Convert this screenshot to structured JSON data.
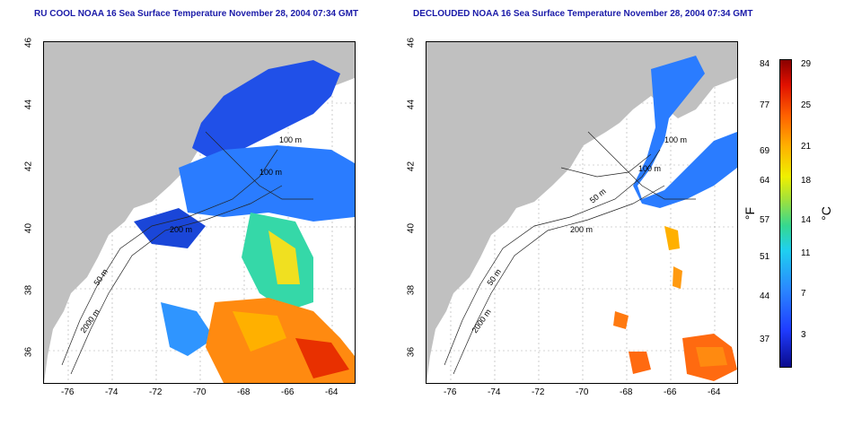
{
  "titles": {
    "left": "RU COOL NOAA 16 Sea Surface Temperature November 28, 2004 07:34 GMT",
    "right": "DECLOUDED NOAA 16 Sea Surface Temperature November 28, 2004 07:34 GMT"
  },
  "axes": {
    "lon_ticks": [
      "-76",
      "-74",
      "-72",
      "-70",
      "-68",
      "-66",
      "-64"
    ],
    "lat_ticks": [
      "46",
      "44",
      "42",
      "40",
      "38",
      "36"
    ],
    "lon_range": [
      -77,
      -63
    ],
    "lat_range": [
      35,
      46
    ]
  },
  "contour_labels": {
    "left": [
      "100 m",
      "100 m",
      "200 m",
      "50 m",
      "2000 m"
    ],
    "right": [
      "100 m",
      "100 m",
      "50 m",
      "200 m",
      "50 m",
      "2000 m"
    ]
  },
  "colorbar": {
    "fahrenheit_label": "°F",
    "celsius_label": "°C",
    "fahrenheit_ticks": [
      "84",
      "77",
      "69",
      "64",
      "57",
      "51",
      "44",
      "37"
    ],
    "celsius_ticks": [
      "29",
      "25",
      "21",
      "18",
      "14",
      "11",
      "7",
      "3"
    ],
    "fahrenheit_values": [
      84,
      77,
      69,
      64,
      57,
      51,
      44,
      37
    ],
    "celsius_values": [
      29,
      25,
      21,
      18,
      14,
      11,
      7,
      3
    ],
    "range_c": [
      0,
      29
    ]
  },
  "colors": {
    "land": "#c0c0c0",
    "title": "#1a1aa8",
    "cold": "#1f5cff",
    "warm": "#ff6a10"
  }
}
